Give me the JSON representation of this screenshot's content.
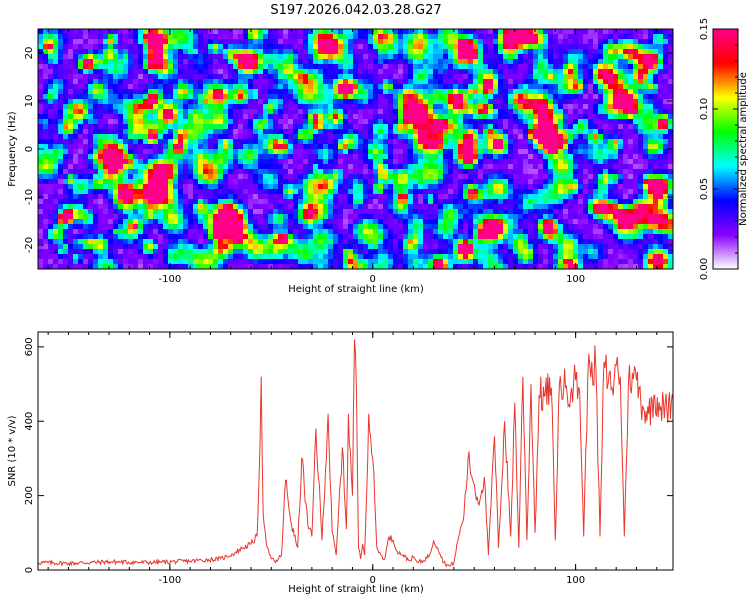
{
  "title": "S197.2026.042.03.28.G27",
  "chart_data": [
    {
      "type": "heatmap",
      "xlabel": "Height of straight line (km)",
      "ylabel": "Frequency (Hz)",
      "xlim": [
        -165,
        148
      ],
      "ylim": [
        -25,
        25
      ],
      "xticks": [
        -100,
        0,
        100
      ],
      "yticks": [
        -20,
        -10,
        0,
        10,
        20
      ],
      "grid": false,
      "colorbar": {
        "label": "Normalized spectral amplitude",
        "range": [
          0,
          0.15
        ],
        "ticks": [
          "0.00",
          "0.05",
          "0.10",
          "0.15"
        ],
        "colors": [
          "#ffffff",
          "#8800ff",
          "#0000ff",
          "#00ffff",
          "#00ff00",
          "#ffff00",
          "#ff0000",
          "#ff0088"
        ]
      },
      "hotspots": [
        {
          "x": 75,
          "y": -21,
          "value": 0.15
        },
        {
          "x": -150,
          "y": -6,
          "value": 0.13
        },
        {
          "x": -52,
          "y": 9,
          "value": 0.13
        },
        {
          "x": -60,
          "y": 12,
          "value": 0.1
        },
        {
          "x": -153,
          "y": -20,
          "value": 0.1
        },
        {
          "x": 5,
          "y": -1,
          "value": 0.09
        },
        {
          "x": 27,
          "y": 11,
          "value": 0.09
        },
        {
          "x": 110,
          "y": 2,
          "value": 0.09
        }
      ]
    },
    {
      "type": "line",
      "xlabel": "Height of straight line (km)",
      "ylabel": "SNR (10 * v/v)",
      "xlim": [
        -165,
        148
      ],
      "ylim": [
        0,
        640
      ],
      "xticks": [
        -100,
        0,
        100
      ],
      "yticks": [
        0,
        200,
        400,
        600
      ],
      "grid": false,
      "color": "#e8372d",
      "series": [
        {
          "x": [
            -165,
            -150,
            -130,
            -110,
            -90,
            -75,
            -68,
            -64,
            -60,
            -57,
            -56,
            -55,
            -54,
            -52,
            -50,
            -48,
            -45,
            -43,
            -40,
            -37,
            -35,
            -32,
            -30,
            -28,
            -25,
            -22,
            -20,
            -18,
            -15,
            -13,
            -12,
            -10,
            -9,
            -8,
            -7,
            -6,
            -5,
            -4,
            -2,
            0,
            2,
            4,
            6,
            8,
            10,
            12,
            15,
            18,
            20,
            22,
            25,
            28,
            30,
            32,
            35,
            38,
            40,
            42,
            45,
            47,
            50,
            52,
            55,
            57,
            60,
            62,
            65,
            68,
            70,
            72,
            74,
            76,
            78,
            80,
            82,
            85,
            88,
            90,
            92,
            95,
            98,
            100,
            102,
            104,
            106,
            108,
            110,
            112,
            114,
            116,
            118,
            120,
            122,
            124,
            126,
            128,
            130,
            133,
            136,
            139,
            142,
            145,
            148
          ],
          "values": [
            20,
            18,
            22,
            20,
            24,
            30,
            45,
            60,
            70,
            90,
            250,
            520,
            150,
            60,
            30,
            20,
            40,
            240,
            120,
            60,
            300,
            120,
            90,
            380,
            80,
            420,
            100,
            40,
            330,
            110,
            420,
            200,
            620,
            480,
            60,
            30,
            70,
            40,
            420,
            300,
            60,
            40,
            30,
            90,
            80,
            50,
            40,
            25,
            35,
            20,
            25,
            40,
            80,
            60,
            20,
            10,
            20,
            80,
            150,
            300,
            230,
            180,
            250,
            40,
            360,
            60,
            400,
            90,
            450,
            60,
            520,
            80,
            500,
            100,
            470,
            470,
            490,
            80,
            500,
            490,
            490,
            510,
            480,
            90,
            520,
            560,
            540,
            90,
            560,
            500,
            490,
            550,
            520,
            90,
            500,
            530,
            510,
            440,
            420,
            470,
            440,
            430,
            460
          ]
        }
      ]
    }
  ]
}
